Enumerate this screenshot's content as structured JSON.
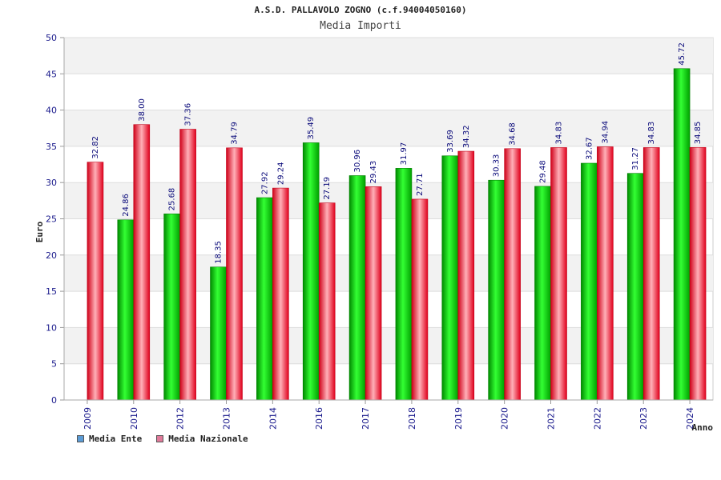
{
  "chart_data": {
    "type": "bar",
    "title": "A.S.D. PALLAVOLO ZOGNO (c.f.94004050160)",
    "subtitle": "Media Importi",
    "xlabel": "Anno",
    "ylabel": "Euro",
    "ylim": [
      0,
      50
    ],
    "yticks": [
      0,
      5,
      10,
      15,
      20,
      25,
      30,
      35,
      40,
      45,
      50
    ],
    "grid": true,
    "legend_position": "bottom-left",
    "categories": [
      "2009",
      "2010",
      "2012",
      "2013",
      "2014",
      "2016",
      "2017",
      "2018",
      "2019",
      "2020",
      "2021",
      "2022",
      "2023",
      "2024"
    ],
    "series": [
      {
        "name": "Media Ente",
        "color": "#00c000",
        "values": [
          null,
          24.86,
          25.68,
          18.35,
          27.92,
          35.49,
          30.96,
          31.97,
          33.69,
          30.33,
          29.48,
          32.67,
          31.27,
          45.72
        ],
        "labels": [
          "",
          "24.86",
          "25.68",
          "18.35",
          "27.92",
          "35.49",
          "30.96",
          "31.97",
          "33.69",
          "30.33",
          "29.48",
          "32.67",
          "31.27",
          "45.72"
        ]
      },
      {
        "name": "Media Nazionale",
        "color": "#e8102a",
        "values": [
          32.82,
          38.0,
          37.36,
          34.79,
          29.24,
          27.19,
          29.43,
          27.71,
          34.32,
          34.68,
          34.83,
          34.94,
          34.83,
          34.85
        ],
        "labels": [
          "32.82",
          "38.00",
          "37.36",
          "34.79",
          "29.24",
          "27.19",
          "29.43",
          "27.71",
          "34.32",
          "34.68",
          "34.83",
          "34.94",
          "34.83",
          "34.85"
        ]
      }
    ],
    "legend_swatch_colors": [
      "#5b9bd5",
      "#e07a9a"
    ]
  }
}
